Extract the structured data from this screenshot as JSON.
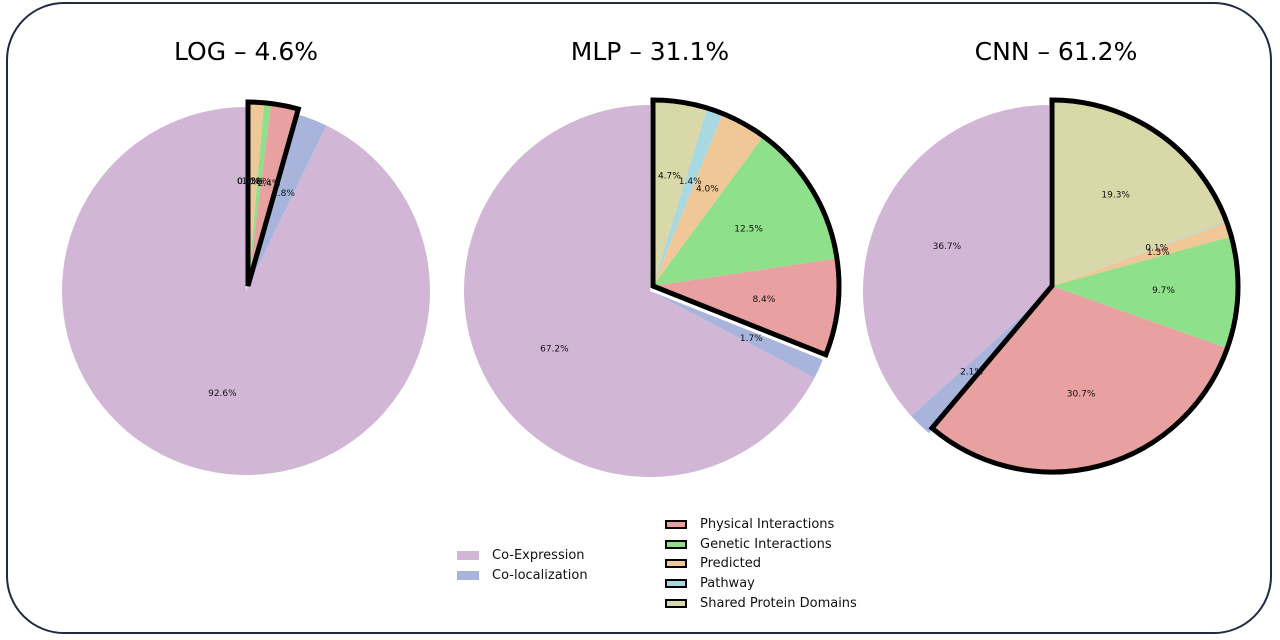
{
  "chart_data": [
    {
      "type": "pie",
      "title": "LOG – 4.6%",
      "categories": [
        "Shared Protein Domains",
        "Pathway",
        "Predicted",
        "Genetic Interactions",
        "Physical Interactions",
        "Co-localization",
        "Co-Expression"
      ],
      "labels": [
        "0.1%",
        "0.0%",
        "1.3%",
        "0.6%",
        "2.4%",
        "2.8%",
        "92.6%"
      ],
      "values": [
        0.1,
        0.0,
        1.3,
        0.6,
        2.4,
        2.8,
        92.6
      ]
    },
    {
      "type": "pie",
      "title": "MLP – 31.1%",
      "categories": [
        "Shared Protein Domains",
        "Pathway",
        "Predicted",
        "Genetic Interactions",
        "Physical Interactions",
        "Co-localization",
        "Co-Expression"
      ],
      "labels": [
        "4.7%",
        "1.4%",
        "4.0%",
        "12.5%",
        "8.4%",
        "1.7%",
        "67.2%"
      ],
      "values": [
        4.7,
        1.4,
        4.0,
        12.5,
        8.4,
        1.7,
        67.2
      ]
    },
    {
      "type": "pie",
      "title": "CNN – 61.2%",
      "categories": [
        "Shared Protein Domains",
        "Pathway",
        "Predicted",
        "Genetic Interactions",
        "Physical Interactions",
        "Co-localization",
        "Co-Expression"
      ],
      "labels": [
        "19.3%",
        "0.1%",
        "1.3%",
        "9.7%",
        "30.7%",
        "2.1%",
        "36.7%"
      ],
      "values": [
        19.3,
        0.1,
        1.3,
        9.7,
        30.7,
        2.1,
        36.7
      ]
    }
  ],
  "colors": {
    "Shared Protein Domains": "#d8d8a8",
    "Pathway": "#a8d8e0",
    "Predicted": "#f0c898",
    "Genetic Interactions": "#8ee08a",
    "Physical Interactions": "#e8a0a0",
    "Co-localization": "#a8b4dc",
    "Co-Expression": "#d2b6d6"
  },
  "legend": {
    "left": [
      "Co-Expression",
      "Co-localization"
    ],
    "right": [
      "Physical Interactions",
      "Genetic Interactions",
      "Predicted",
      "Pathway",
      "Shared Protein Domains"
    ]
  }
}
